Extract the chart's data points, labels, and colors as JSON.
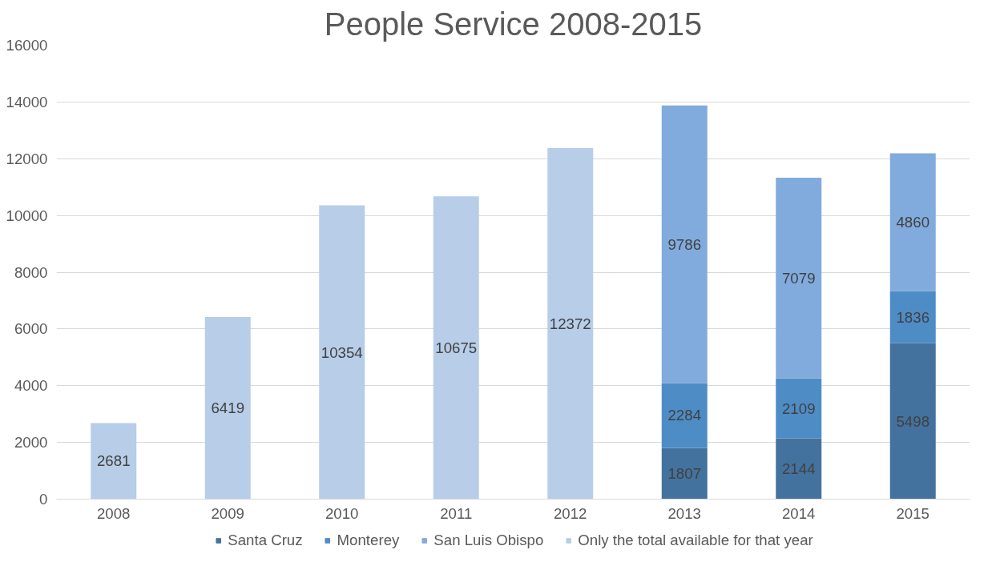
{
  "chart_data": {
    "type": "bar",
    "title": "People Service 2008-2015",
    "stacked": true,
    "categories": [
      "2008",
      "2009",
      "2010",
      "2011",
      "2012",
      "2013",
      "2014",
      "2015"
    ],
    "series": [
      {
        "name": "Santa Cruz",
        "color": "#44729e",
        "values": [
          null,
          null,
          null,
          null,
          null,
          1807,
          2144,
          5498
        ]
      },
      {
        "name": "Monterey",
        "color": "#4e8cc6",
        "values": [
          null,
          null,
          null,
          null,
          null,
          2284,
          2109,
          1836
        ]
      },
      {
        "name": "San Luis Obispo",
        "color": "#81abdc",
        "values": [
          null,
          null,
          null,
          null,
          null,
          9786,
          7079,
          4860
        ]
      },
      {
        "name": "Only the total available for that year",
        "color": "#b7cde8",
        "values": [
          2681,
          6419,
          10354,
          10675,
          12372,
          null,
          null,
          null
        ]
      }
    ],
    "ylim": [
      0,
      16000
    ],
    "yticks": [
      0,
      2000,
      4000,
      6000,
      8000,
      10000,
      12000,
      14000,
      16000
    ],
    "grid": "y",
    "legend": "bottom",
    "data_labels": true
  }
}
